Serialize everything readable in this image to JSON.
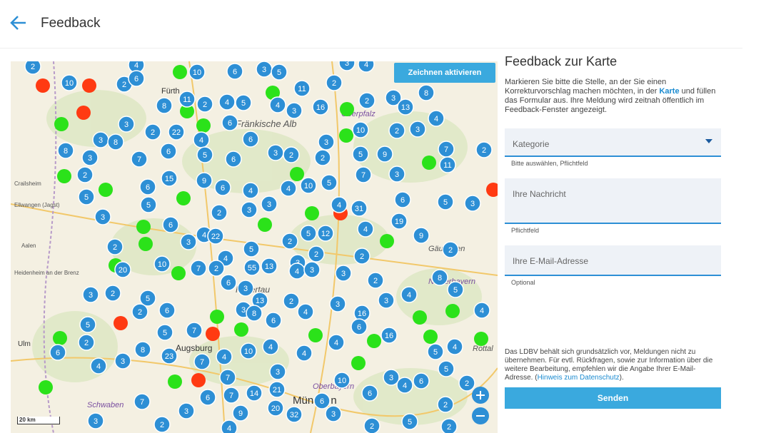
{
  "header": {
    "title": "Feedback"
  },
  "map": {
    "draw_button": "Zeichnen aktivieren",
    "scale": "20 km",
    "places": [
      "Fürth",
      "Fränkische Alb",
      "Oberpfalz",
      "Crailsheim",
      "Ellwangen (Jagst)",
      "Aalen",
      "Heidenheim an der Brenz",
      "Ulm",
      "Hallertau",
      "Augsburg",
      "Oberbayern",
      "Niederbayern",
      "Schwaben",
      "München",
      "Gäuboden",
      "Rottal"
    ],
    "clusters": [
      "2",
      "4",
      "10",
      "6",
      "3",
      "5",
      "3",
      "4",
      "10",
      "2",
      "6",
      "11",
      "8",
      "2",
      "4",
      "5",
      "4",
      "11",
      "2",
      "3",
      "16",
      "2",
      "3",
      "13",
      "8",
      "4",
      "3",
      "2",
      "22",
      "6",
      "10",
      "2",
      "3",
      "3",
      "8",
      "4",
      "6",
      "3",
      "8",
      "3",
      "7",
      "6",
      "5",
      "6",
      "3",
      "2",
      "2",
      "5",
      "9",
      "7",
      "2",
      "11",
      "2",
      "15",
      "9",
      "6",
      "4",
      "4",
      "10",
      "5",
      "7",
      "3",
      "6",
      "5",
      "5",
      "3",
      "3",
      "2",
      "4",
      "31",
      "6",
      "5",
      "3",
      "3",
      "6",
      "19",
      "4",
      "22",
      "3",
      "5",
      "12",
      "2",
      "4",
      "9",
      "2",
      "5",
      "2",
      "2",
      "2",
      "4",
      "10",
      "7",
      "2",
      "55",
      "13",
      "3",
      "4",
      "3",
      "20",
      "3",
      "8",
      "2",
      "6",
      "3",
      "5",
      "3",
      "2",
      "5",
      "13",
      "2",
      "3",
      "3",
      "4",
      "6",
      "2",
      "3",
      "8",
      "4",
      "16",
      "4",
      "5",
      "6",
      "6",
      "5",
      "7",
      "16",
      "2",
      "4",
      "4",
      "8",
      "6",
      "4",
      "10",
      "4",
      "4",
      "23",
      "3",
      "7",
      "4",
      "5",
      "5",
      "7",
      "10",
      "3",
      "2",
      "3",
      "4",
      "6",
      "7",
      "6",
      "7",
      "14",
      "21",
      "6",
      "6",
      "9",
      "20",
      "32",
      "3",
      "2",
      "3",
      "2",
      "4",
      "2",
      "2",
      "5",
      "3"
    ]
  },
  "form": {
    "title": "Feedback zur Karte",
    "intro": [
      "Markieren Sie bitte die Stelle, an der Sie einen Korrekturvorschlag machen möchten, in der ",
      "Karte",
      " und füllen das Formular aus. Ihre Meldung wird zeitnah öffentlich im Feedback-Fenster angezeigt."
    ],
    "category": {
      "placeholder": "Kategorie",
      "help": "Bitte auswählen, Pflichtfeld"
    },
    "message": {
      "placeholder": "Ihre Nachricht",
      "help": "Pflichtfeld"
    },
    "email": {
      "placeholder": "Ihre E-Mail-Adresse",
      "help": "Optional"
    },
    "disclaimer": [
      "Das LDBV behält sich grundsätzlich vor, Meldungen nicht zu übernehmen. Für evtl. Rückfragen, sowie zur Information über die weitere Bearbeitung, empfehlen wir die Angabe Ihrer E-Mail-Adresse. (",
      "Hinweis zum Datenschutz",
      ")."
    ],
    "submit": "Senden"
  }
}
